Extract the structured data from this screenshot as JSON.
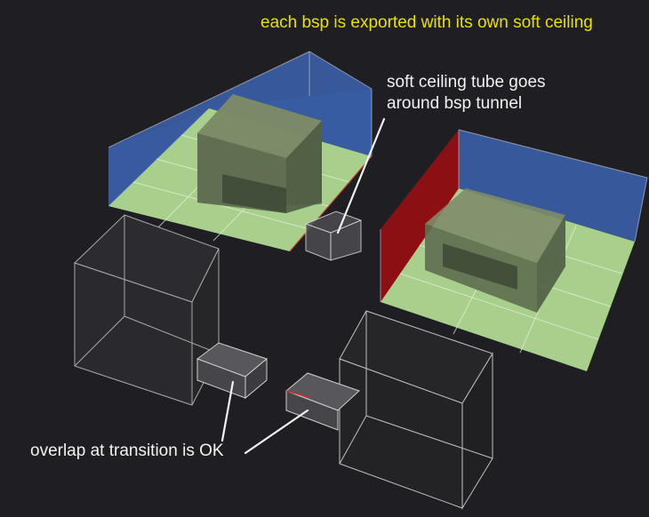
{
  "annotations": {
    "title": "each bsp is exported with its own soft ceiling",
    "tube_note": "soft ceiling tube goes around bsp tunnel",
    "overlap_note": "overlap at transition is OK"
  },
  "colors": {
    "background": "#1f1f23",
    "title_text": "#e8e000",
    "annotation_text": "#f2f2f2",
    "floor": "#a9cf8c",
    "wall_blue": "#3a5fa8",
    "wall_red": "#8c0f14",
    "wireframe": "#c8c8c8"
  }
}
